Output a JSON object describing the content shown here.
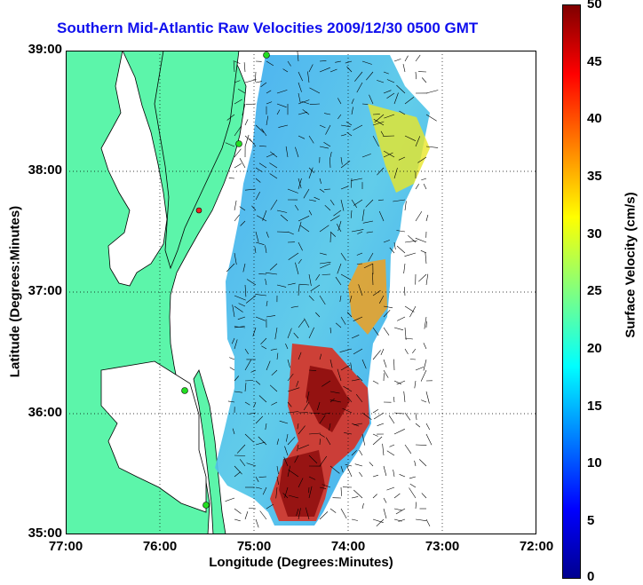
{
  "title": "Southern Mid-Atlantic Raw Velocities 2009/12/30 0500 GMT",
  "x_axis": {
    "label": "Longitude (Degrees:Minutes)",
    "ticks": [
      "77:00",
      "76:00",
      "75:00",
      "74:00",
      "73:00",
      "72:00"
    ],
    "range": [
      -77,
      -72
    ]
  },
  "y_axis": {
    "label": "Latitude (Degrees:Minutes)",
    "ticks": [
      "39:00",
      "38:00",
      "37:00",
      "36:00",
      "35:00"
    ],
    "range": [
      35,
      39
    ]
  },
  "colorbar": {
    "label": "Surface Velocity (cm/s)",
    "ticks": [
      "50",
      "45",
      "40",
      "35",
      "30",
      "25",
      "20",
      "15",
      "10",
      "5",
      "0"
    ],
    "range": [
      0,
      50
    ],
    "colormap": "jet"
  },
  "grid": "dotted",
  "colors": {
    "land": "#5cf5aa",
    "coast": "#000000",
    "title": "#1010ee",
    "station_active": "#22dd22",
    "station_flag": "#ee2222"
  }
}
